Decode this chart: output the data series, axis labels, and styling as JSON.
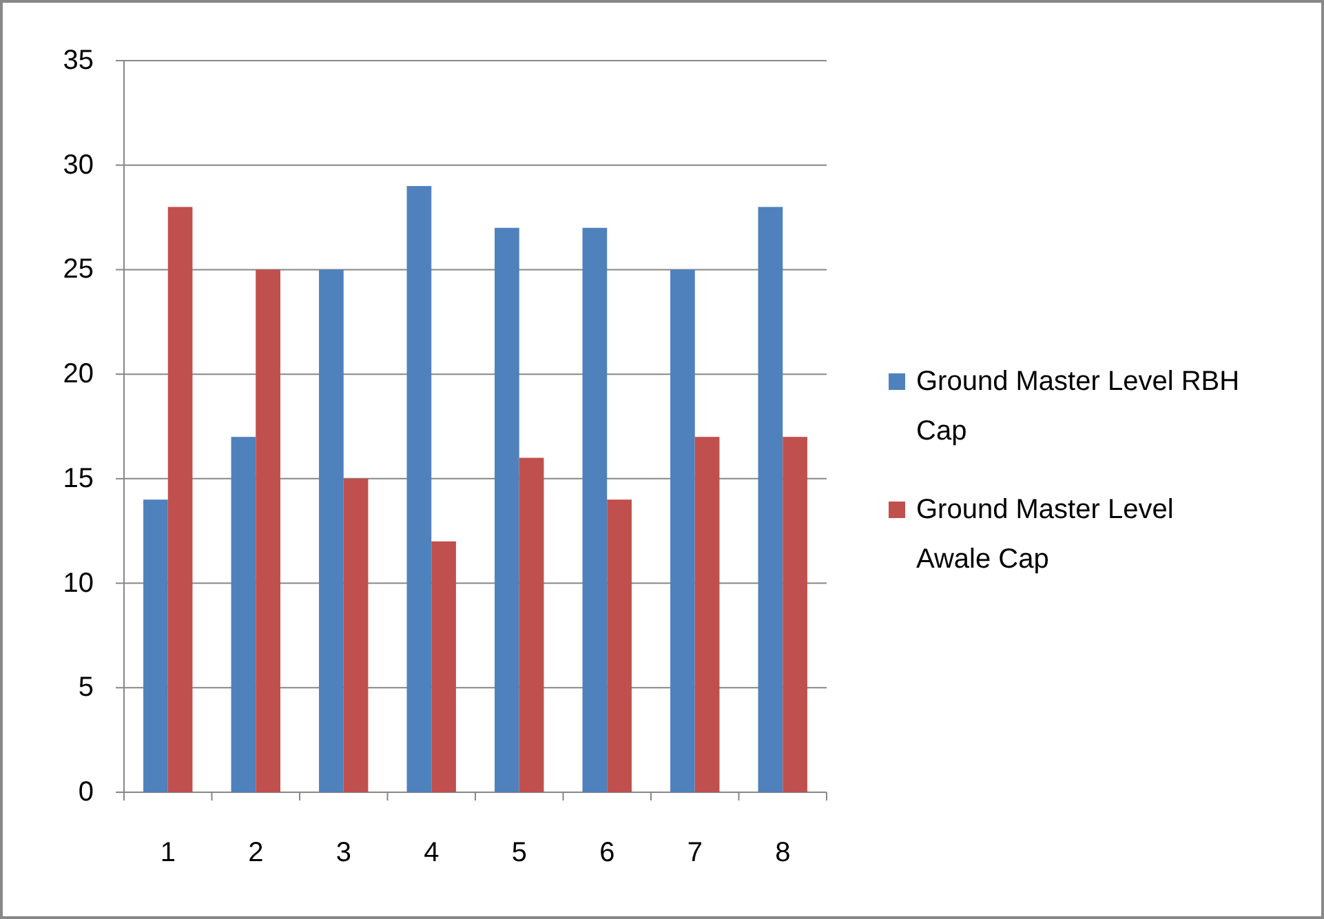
{
  "chart_data": {
    "type": "bar",
    "categories": [
      "1",
      "2",
      "3",
      "4",
      "5",
      "6",
      "7",
      "8"
    ],
    "series": [
      {
        "name": "Ground Master Level RBH Cap",
        "color": "#4f81bd",
        "values": [
          14,
          17,
          25,
          29,
          27,
          27,
          25,
          28
        ]
      },
      {
        "name": "Ground Master Level Awale Cap",
        "color": "#c0504d",
        "values": [
          28,
          25,
          15,
          12,
          16,
          14,
          17,
          17
        ]
      }
    ],
    "ylim": [
      0,
      35
    ],
    "yticks": [
      0,
      5,
      10,
      15,
      20,
      25,
      30,
      35
    ],
    "grid": "y",
    "legend": "right"
  }
}
